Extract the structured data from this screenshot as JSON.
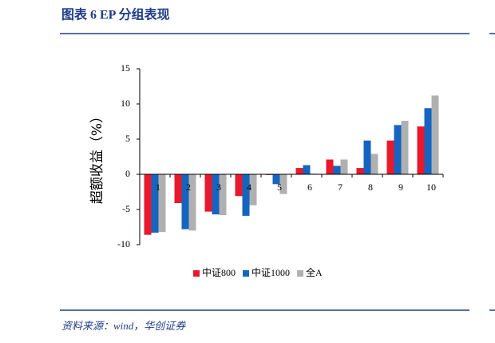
{
  "header": {
    "title": "图表 6   EP 分组表现"
  },
  "footer": {
    "source": "资料来源：wind，华创证券"
  },
  "chart_data": {
    "type": "bar",
    "y_label": "超额收益（%）",
    "categories": [
      "1",
      "2",
      "3",
      "4",
      "5",
      "6",
      "7",
      "8",
      "9",
      "10"
    ],
    "series": [
      {
        "name": "中证800",
        "color": "#e8192c",
        "values": [
          -8.6,
          -4.1,
          -5.3,
          -3.1,
          -0.1,
          0.9,
          2.1,
          0.9,
          4.8,
          6.8
        ]
      },
      {
        "name": "中证1000",
        "color": "#1565c0",
        "values": [
          -8.3,
          -7.8,
          -5.7,
          -5.9,
          -1.4,
          1.3,
          1.2,
          4.8,
          7.0,
          9.4
        ]
      },
      {
        "name": "全A",
        "color": "#b0b0b0",
        "values": [
          -8.2,
          -8.0,
          -5.8,
          -4.4,
          -2.8,
          0.1,
          2.1,
          2.9,
          7.6,
          11.2
        ]
      }
    ],
    "ylim": [
      -10,
      15
    ],
    "yticks": [
      -10,
      -5,
      0,
      5,
      10,
      15
    ],
    "grid": false,
    "legend": "bottom"
  }
}
